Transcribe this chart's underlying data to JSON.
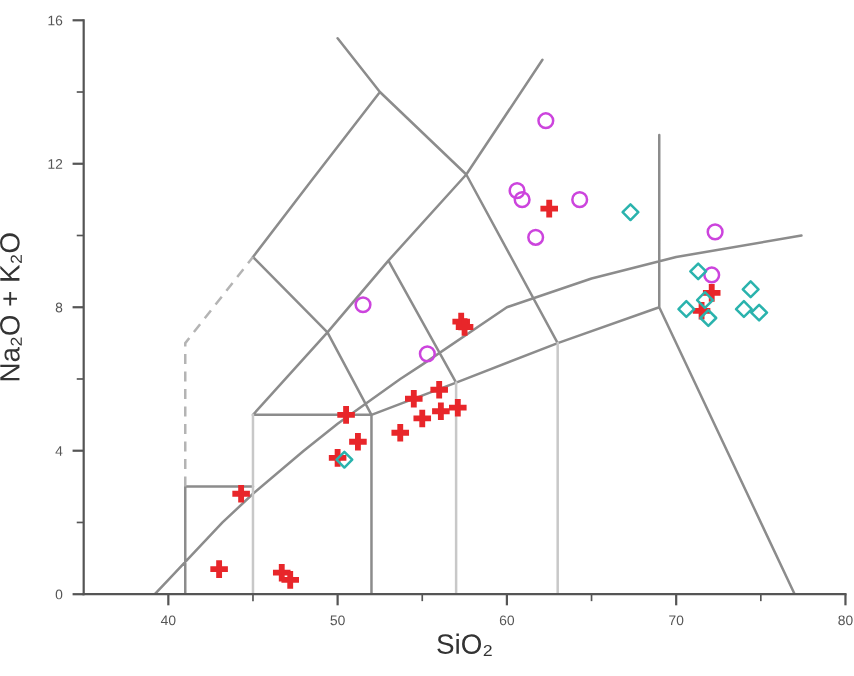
{
  "chart_data": {
    "type": "scatter",
    "xlabel": "SiO₂",
    "ylabel": "Na₂O + K₂O",
    "xlim": [
      35,
      80
    ],
    "ylim": [
      0,
      16
    ],
    "xticks": [
      40,
      {
        "value": 45,
        "label": null
      },
      50,
      {
        "value": 55,
        "label": null
      },
      60,
      {
        "value": 65,
        "label": null
      },
      70,
      {
        "value": 75,
        "label": null
      },
      80
    ],
    "yticks": [
      0,
      {
        "value": 2,
        "label": null
      },
      4,
      {
        "value": 6,
        "label": null
      },
      8,
      {
        "value": 10,
        "label": null
      },
      12,
      {
        "value": 14,
        "label": null
      },
      16
    ],
    "grid": false,
    "series": [
      {
        "type": "line",
        "color": "#8c8c8c",
        "x": [
          41,
          41,
          45,
          null,
          62.1,
          57.6,
          53,
          49.4,
          45,
          52,
          52,
          null,
          52,
          57,
          63,
          69,
          77,
          null,
          69,
          69,
          null,
          53,
          57,
          null,
          57.6,
          63,
          null,
          52,
          49.4,
          45,
          48.4,
          52.5,
          57.6,
          null,
          52.5,
          50,
          null,
          39.2,
          40,
          43.2,
          45,
          48,
          50,
          53.7,
          55,
          60,
          65,
          70,
          77.4
        ],
        "values": [
          0,
          3,
          3,
          null,
          14.9,
          11.7,
          9.3,
          7.3,
          5,
          5,
          0,
          null,
          5,
          5.9,
          7,
          8,
          0,
          null,
          8,
          12.8,
          null,
          9.3,
          5.9,
          null,
          11.7,
          7,
          null,
          5,
          7.3,
          9.4,
          11.5,
          14,
          11.7,
          null,
          14,
          15.5,
          null,
          0,
          0.4,
          2,
          2.8,
          4,
          4.75,
          6,
          6.4,
          8,
          8.8,
          9.4,
          10
        ]
      },
      {
        "type": "line",
        "color": "#c8c8c8",
        "x": [
          45,
          45,
          null,
          57,
          57,
          null,
          63,
          63
        ],
        "values": [
          0,
          5,
          null,
          0,
          5.9,
          null,
          0,
          7
        ]
      },
      {
        "type": "line",
        "color": "#b4b4b4",
        "line_style": "dashed",
        "x": [
          41,
          41,
          45
        ],
        "values": [
          3,
          7,
          9.4
        ]
      },
      {
        "marker": "cross",
        "color": "#e8262a",
        "x": [
          43.0,
          46.7,
          47.2,
          44.3,
          50.0,
          51.2,
          50.5,
          53.7,
          54.5,
          55.0,
          56.0,
          56.1,
          57.1,
          57.3,
          57.5,
          62.5,
          72.1,
          71.5
        ],
        "values": [
          0.7,
          0.6,
          0.4,
          2.8,
          3.8,
          4.25,
          5.0,
          4.5,
          5.45,
          4.9,
          5.7,
          5.1,
          5.2,
          7.6,
          7.45,
          10.75,
          8.4,
          7.9
        ]
      },
      {
        "marker": "circle",
        "color": "#cc44dd",
        "x": [
          51.5,
          55.3,
          62.3,
          60.6,
          60.9,
          64.3,
          61.7,
          72.3,
          72.1
        ],
        "values": [
          8.07,
          6.7,
          13.2,
          11.25,
          11.0,
          11.0,
          9.95,
          10.1,
          8.9
        ]
      },
      {
        "marker": "diamond",
        "color": "#2ab3ad",
        "x": [
          67.3,
          71.3,
          74.4,
          74.0,
          74.9,
          70.6,
          71.9,
          71.7,
          50.4
        ],
        "values": [
          10.65,
          9.0,
          8.5,
          7.95,
          7.85,
          7.95,
          7.7,
          8.2,
          3.75
        ]
      }
    ]
  }
}
